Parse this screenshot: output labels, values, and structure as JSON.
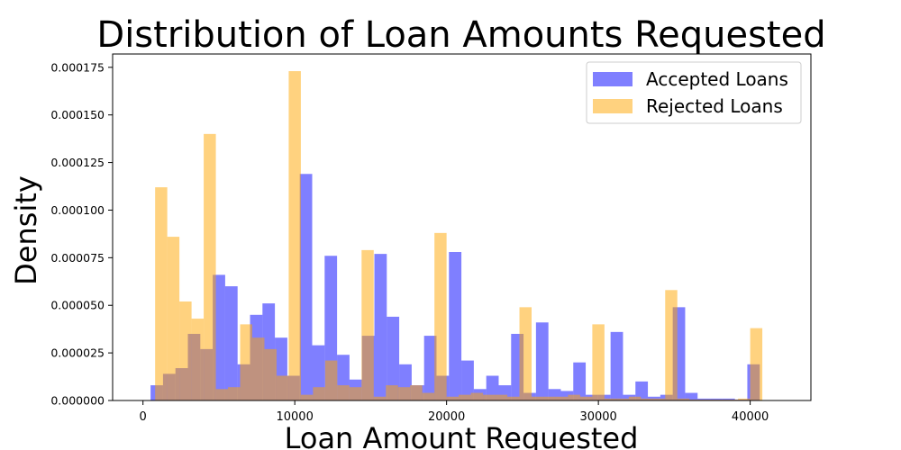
{
  "chart_data": {
    "type": "bar",
    "title": "Distribution of Loan Amounts Requested",
    "xlabel": "Loan Amount Requested",
    "ylabel": "Density",
    "xlim": [
      -2000,
      44000
    ],
    "ylim": [
      0,
      0.000182
    ],
    "xticks": [
      0,
      10000,
      20000,
      30000,
      40000
    ],
    "yticks": [
      {
        "value": 0,
        "label": "0.000000"
      },
      {
        "value": 2.5e-05,
        "label": "0.000025"
      },
      {
        "value": 5e-05,
        "label": "0.000050"
      },
      {
        "value": 7.5e-05,
        "label": "0.000075"
      },
      {
        "value": 0.0001,
        "label": "0.000100"
      },
      {
        "value": 0.000125,
        "label": "0.000125"
      },
      {
        "value": 0.00015,
        "label": "0.000150"
      },
      {
        "value": 0.000175,
        "label": "0.000175"
      }
    ],
    "legend_position": "top-right",
    "series": [
      {
        "name": "Accepted Loans",
        "color": "#0000ff",
        "opacity": 0.5,
        "bin_width": 819,
        "bins": [
          [
            500,
            8e-06
          ],
          [
            1319,
            1.4e-05
          ],
          [
            2138,
            1.7e-05
          ],
          [
            2957,
            3.5e-05
          ],
          [
            3776,
            2.7e-05
          ],
          [
            4595,
            6.6e-05
          ],
          [
            5414,
            6e-05
          ],
          [
            6233,
            1.9e-05
          ],
          [
            7052,
            4.5e-05
          ],
          [
            7871,
            5.1e-05
          ],
          [
            8690,
            3.3e-05
          ],
          [
            9509,
            1.3e-05
          ],
          [
            10328,
            0.000119
          ],
          [
            11147,
            2.9e-05
          ],
          [
            11966,
            7.6e-05
          ],
          [
            12785,
            2.4e-05
          ],
          [
            13604,
            1.1e-05
          ],
          [
            14423,
            3.4e-05
          ],
          [
            15242,
            7.7e-05
          ],
          [
            16061,
            4.4e-05
          ],
          [
            16880,
            1.9e-05
          ],
          [
            17699,
            8e-06
          ],
          [
            18518,
            3.4e-05
          ],
          [
            19337,
            1.3e-05
          ],
          [
            20156,
            7.8e-05
          ],
          [
            20975,
            2.1e-05
          ],
          [
            21794,
            6e-06
          ],
          [
            22613,
            1.3e-05
          ],
          [
            23432,
            8e-06
          ],
          [
            24251,
            3.5e-05
          ],
          [
            25070,
            4e-06
          ],
          [
            25889,
            4.1e-05
          ],
          [
            26708,
            6e-06
          ],
          [
            27527,
            5e-06
          ],
          [
            28346,
            2e-05
          ],
          [
            29165,
            3e-06
          ],
          [
            29984,
            3e-06
          ],
          [
            30803,
            3.6e-05
          ],
          [
            31622,
            3e-06
          ],
          [
            32441,
            1e-05
          ],
          [
            33260,
            2e-06
          ],
          [
            34079,
            3e-06
          ],
          [
            34898,
            4.9e-05
          ],
          [
            35717,
            4e-06
          ],
          [
            36536,
            1e-06
          ],
          [
            37355,
            1e-06
          ],
          [
            38174,
            1e-06
          ],
          [
            38993,
            5e-07
          ],
          [
            39812,
            1.9e-05
          ]
        ]
      },
      {
        "name": "Rejected Loans",
        "color": "#ffa500",
        "opacity": 0.5,
        "bin_width": 800,
        "bins": [
          [
            800,
            0.000112
          ],
          [
            1600,
            8.6e-05
          ],
          [
            2400,
            5.2e-05
          ],
          [
            3200,
            4.3e-05
          ],
          [
            4000,
            0.00014
          ],
          [
            4800,
            6e-06
          ],
          [
            5600,
            7e-06
          ],
          [
            6400,
            4e-05
          ],
          [
            7200,
            3.3e-05
          ],
          [
            8000,
            2.7e-05
          ],
          [
            8800,
            1.3e-05
          ],
          [
            9600,
            0.000173
          ],
          [
            10400,
            3e-06
          ],
          [
            11200,
            7e-06
          ],
          [
            12000,
            2.1e-05
          ],
          [
            12800,
            8e-06
          ],
          [
            13600,
            7e-06
          ],
          [
            14400,
            7.9e-05
          ],
          [
            15200,
            2e-06
          ],
          [
            16000,
            8e-06
          ],
          [
            16800,
            7e-06
          ],
          [
            17600,
            8e-06
          ],
          [
            18400,
            4e-06
          ],
          [
            19200,
            8.8e-05
          ],
          [
            20000,
            2e-06
          ],
          [
            20800,
            3e-06
          ],
          [
            21600,
            4e-06
          ],
          [
            22400,
            3e-06
          ],
          [
            23200,
            3e-06
          ],
          [
            24000,
            2e-06
          ],
          [
            24800,
            4.9e-05
          ],
          [
            25600,
            2e-06
          ],
          [
            26400,
            2e-06
          ],
          [
            27200,
            2e-06
          ],
          [
            28000,
            3e-06
          ],
          [
            28800,
            2e-06
          ],
          [
            29600,
            4e-05
          ],
          [
            30400,
            1e-06
          ],
          [
            31200,
            1e-06
          ],
          [
            32000,
            2e-06
          ],
          [
            32800,
            1e-06
          ],
          [
            33600,
            1e-06
          ],
          [
            34400,
            5.8e-05
          ],
          [
            35200,
            1e-06
          ],
          [
            36000,
            5e-07
          ],
          [
            36800,
            5e-07
          ],
          [
            37600,
            5e-07
          ],
          [
            38400,
            5e-07
          ],
          [
            39200,
            1e-06
          ],
          [
            40000,
            3.8e-05
          ]
        ]
      }
    ]
  }
}
